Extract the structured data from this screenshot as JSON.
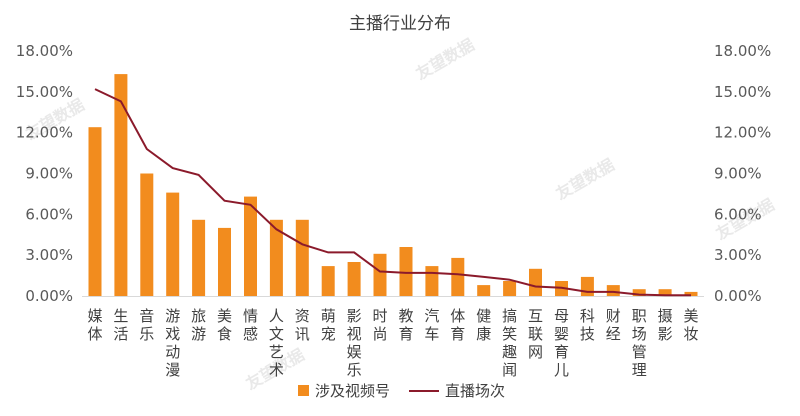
{
  "chart_data": {
    "type": "bar",
    "title": "主播行业分布",
    "xlabel": "",
    "ylabel": "",
    "ylim": [
      0,
      18
    ],
    "y2lim": [
      0,
      18
    ],
    "yticks": [
      "0.00%",
      "3.00%",
      "6.00%",
      "9.00%",
      "12.00%",
      "15.00%",
      "18.00%"
    ],
    "y2ticks": [
      "0.00%",
      "3.00%",
      "6.00%",
      "9.00%",
      "12.00%",
      "15.00%",
      "18.00%"
    ],
    "grid": false,
    "legend_position": "bottom",
    "categories": [
      "媒体",
      "生活",
      "音乐",
      "游戏动漫",
      "旅游",
      "美食",
      "情感",
      "人文艺术",
      "资讯",
      "萌宠",
      "影视娱乐",
      "时尚",
      "教育",
      "汽车",
      "体育",
      "健康",
      "搞笑趣闻",
      "互联网",
      "母婴育儿",
      "科技",
      "财经",
      "职场管理",
      "摄影",
      "美妆"
    ],
    "series": [
      {
        "name": "涉及视频号",
        "type": "bar",
        "color": "#F28C1E",
        "values": [
          12.4,
          16.3,
          9.0,
          7.6,
          5.6,
          5.0,
          7.3,
          5.6,
          5.6,
          2.2,
          2.5,
          3.1,
          3.6,
          2.2,
          2.8,
          0.8,
          1.1,
          2.0,
          1.1,
          1.4,
          0.8,
          0.5,
          0.5,
          0.3
        ]
      },
      {
        "name": "直播场次",
        "type": "line",
        "color": "#8B1A2B",
        "values": [
          15.2,
          14.3,
          10.8,
          9.4,
          8.9,
          7.0,
          6.7,
          4.9,
          3.8,
          3.2,
          3.2,
          1.8,
          1.7,
          1.7,
          1.6,
          1.4,
          1.2,
          0.7,
          0.6,
          0.3,
          0.3,
          0.1,
          0.05,
          0.05
        ]
      }
    ]
  },
  "watermark": {
    "text": "友望数据",
    "color": "#d8d8d8"
  }
}
